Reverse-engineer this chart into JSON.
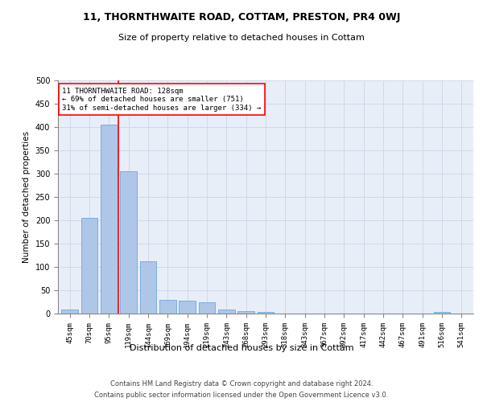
{
  "title1": "11, THORNTHWAITE ROAD, COTTAM, PRESTON, PR4 0WJ",
  "title2": "Size of property relative to detached houses in Cottam",
  "xlabel": "Distribution of detached houses by size in Cottam",
  "ylabel": "Number of detached properties",
  "footer1": "Contains HM Land Registry data © Crown copyright and database right 2024.",
  "footer2": "Contains public sector information licensed under the Open Government Licence v3.0.",
  "categories": [
    "45sqm",
    "70sqm",
    "95sqm",
    "119sqm",
    "144sqm",
    "169sqm",
    "194sqm",
    "219sqm",
    "243sqm",
    "268sqm",
    "293sqm",
    "318sqm",
    "343sqm",
    "367sqm",
    "392sqm",
    "417sqm",
    "442sqm",
    "467sqm",
    "491sqm",
    "516sqm",
    "541sqm"
  ],
  "values": [
    8,
    205,
    405,
    305,
    112,
    30,
    28,
    25,
    8,
    6,
    3,
    0,
    0,
    0,
    0,
    0,
    0,
    0,
    0,
    3,
    0
  ],
  "bar_color": "#aec6e8",
  "bar_edge_color": "#5a9fd4",
  "vline_x_index": 3,
  "vline_color": "red",
  "annotation_line1": "11 THORNTHWAITE ROAD: 128sqm",
  "annotation_line2": "← 69% of detached houses are smaller (751)",
  "annotation_line3": "31% of semi-detached houses are larger (334) →",
  "annotation_box_color": "white",
  "annotation_box_edge": "red",
  "ylim": [
    0,
    500
  ],
  "yticks": [
    0,
    50,
    100,
    150,
    200,
    250,
    300,
    350,
    400,
    450,
    500
  ],
  "grid_color": "#d0d8e8",
  "bg_color": "#e8eef8"
}
